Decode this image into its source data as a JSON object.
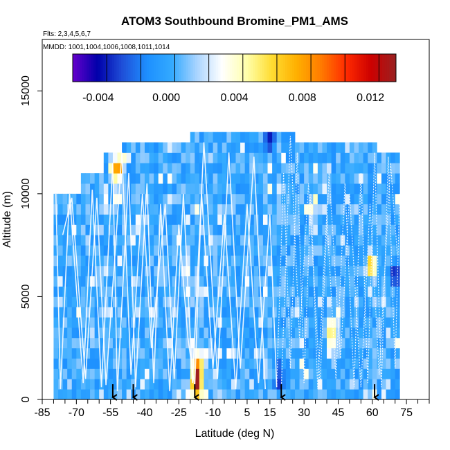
{
  "chart_data": {
    "type": "heatmap",
    "title": "ATOM3 Southbound Bromine_PM1_AMS",
    "subtitle_flights": "Flts: 2,3,4,5,6,7",
    "subtitle_dates": "MMDD: 1001,1004,1006,1008,1011,1014",
    "xlabel": "Latitude (deg N)",
    "ylabel": "Altitude (m)",
    "xlim": [
      -85,
      85
    ],
    "ylim": [
      0,
      17500
    ],
    "x_ticks": [
      -85,
      -70,
      -55,
      -40,
      -25,
      -10,
      5,
      15,
      30,
      45,
      60,
      75
    ],
    "x_minor_ticks": [
      -80,
      -75,
      -65,
      -60,
      -50,
      -45,
      -35,
      -30,
      -20,
      -15,
      -5,
      0,
      10,
      20,
      25,
      35,
      40,
      50,
      55,
      65,
      70,
      80,
      85
    ],
    "y_ticks": [
      0,
      5000,
      10000,
      15000
    ],
    "colorbar": {
      "range": [
        -0.0055,
        0.0135
      ],
      "tick_values": [
        -0.004,
        0.0,
        0.004,
        0.008,
        0.012
      ],
      "tick_labels": [
        "-0.004",
        "0.000",
        "0.004",
        "0.008",
        "0.012"
      ],
      "colors": [
        "#6600cc",
        "#0000aa",
        "#1f4fd8",
        "#1e90ff",
        "#33aaff",
        "#aad4ff",
        "#ffffff",
        "#ffffaa",
        "#ffdd33",
        "#ffb000",
        "#ff7a00",
        "#ff2a00",
        "#cc0000",
        "#992222"
      ]
    },
    "background_value": 0.0002,
    "data_extent": {
      "lat_min": -80,
      "lat_max": 72,
      "altitude_top_by_region": [
        {
          "lat_from": -80,
          "lat_to": -67,
          "top": 10000
        },
        {
          "lat_from": -67,
          "lat_to": -57,
          "top": 10800
        },
        {
          "lat_from": -57,
          "lat_to": -50,
          "top": 11800
        },
        {
          "lat_from": -50,
          "lat_to": -20,
          "top": 12500
        },
        {
          "lat_from": -20,
          "lat_to": 27,
          "top": 13000
        },
        {
          "lat_from": 27,
          "lat_to": 63,
          "top": 12500
        },
        {
          "lat_from": 63,
          "lat_to": 72,
          "top": 11800
        }
      ]
    },
    "hotspots": [
      {
        "lat": -17,
        "alt": 1200,
        "value": 0.0095
      },
      {
        "lat": -17,
        "alt": 600,
        "value": 0.0075
      },
      {
        "lat": -16,
        "alt": 2000,
        "value": 0.005
      },
      {
        "lat": -52,
        "alt": 11200,
        "value": 0.0085
      },
      {
        "lat": 42,
        "alt": 3300,
        "value": 0.007
      },
      {
        "lat": 60,
        "alt": 6500,
        "value": 0.0065
      },
      {
        "lat": -22,
        "alt": 6500,
        "value": 0.0035
      },
      {
        "lat": -17,
        "alt": 5500,
        "value": 0.003
      },
      {
        "lat": 35,
        "alt": 9000,
        "value": 0.003
      },
      {
        "lat": 20,
        "alt": 1100,
        "value": -0.0035
      },
      {
        "lat": 70,
        "alt": 6200,
        "value": -0.003
      },
      {
        "lat": 15,
        "alt": 12700,
        "value": -0.0025
      },
      {
        "lat": 45,
        "alt": 2500,
        "value": 0.0025
      },
      {
        "lat": -42,
        "alt": 8500,
        "value": 0.0025
      }
    ],
    "flight_tracks": [
      {
        "name": "Flt 2",
        "lat": [
          -79,
          -77,
          -73,
          -67,
          -63,
          -59,
          -54,
          -52,
          -47,
          -44,
          -39,
          -36,
          -33,
          -29,
          -25,
          -21,
          -18,
          -15,
          -10,
          -5,
          0,
          5,
          10,
          15,
          18
        ],
        "alt": [
          10000,
          500,
          10000,
          800,
          10200,
          600,
          11500,
          400,
          11000,
          600,
          10500,
          800,
          9500,
          400,
          8500,
          3000,
          600,
          10000,
          1500,
          9000,
          500,
          9500,
          800,
          9000,
          600
        ]
      },
      {
        "name": "Flt 3",
        "lat": [
          18,
          21,
          24,
          27,
          30,
          33,
          36,
          40,
          44,
          48,
          52,
          55,
          58,
          61,
          64,
          67,
          70,
          72
        ],
        "alt": [
          600,
          11000,
          1500,
          12000,
          800,
          10000,
          500,
          9000,
          1000,
          10500,
          600,
          11000,
          800,
          12000,
          600,
          11800,
          1500,
          10000
        ]
      },
      {
        "name": "Flt 5",
        "lat": [
          -76,
          -72,
          -66,
          -61,
          -57,
          -50,
          -46,
          -41,
          -37,
          -31,
          -27,
          -23,
          -19,
          -14,
          -8,
          -3,
          2,
          8,
          13
        ],
        "alt": [
          8000,
          9800,
          1000,
          9800,
          700,
          12000,
          1200,
          10000,
          2500,
          9500,
          1000,
          10000,
          800,
          12500,
          1000,
          12000,
          1500,
          11800,
          500
        ]
      },
      {
        "name": "Flt 7",
        "lat": [
          20,
          24,
          28,
          32,
          37,
          41,
          46,
          50,
          55,
          59,
          63,
          68,
          71
        ],
        "alt": [
          500,
          12800,
          3000,
          10500,
          700,
          11000,
          2000,
          10000,
          600,
          9500,
          1200,
          11500,
          7000
        ]
      }
    ],
    "arrows_lat": [
      -54,
      -45,
      -18,
      20,
      61
    ],
    "grid": false
  }
}
